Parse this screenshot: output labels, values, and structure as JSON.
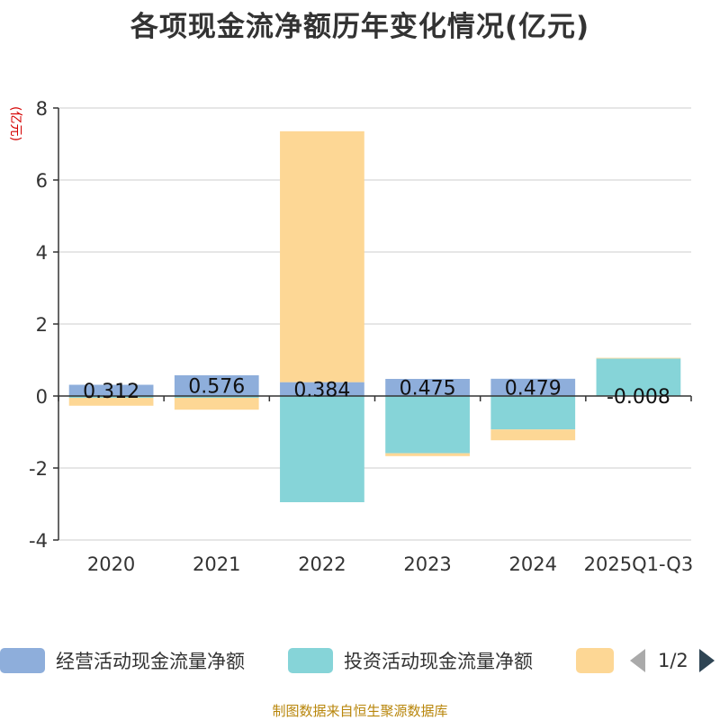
{
  "chart_data": {
    "type": "bar",
    "title": "各项现金流净额历年变化情况(亿元)",
    "unit_label": "(亿元)",
    "categories": [
      "2020",
      "2021",
      "2022",
      "2023",
      "2024",
      "2025Q1-Q3"
    ],
    "stacked": true,
    "ylim": [
      -4,
      8
    ],
    "yticks": [
      -4,
      -2,
      0,
      2,
      4,
      6,
      8
    ],
    "grid": true,
    "series": [
      {
        "name": "经营活动现金流量净额",
        "color": "#8eaedb",
        "values": [
          0.312,
          0.576,
          0.384,
          0.475,
          0.479,
          -0.008
        ],
        "labels": [
          "0.312",
          "0.576",
          "0.384",
          "0.475",
          "0.479",
          "-0.008"
        ]
      },
      {
        "name": "投资活动现金流量净额",
        "color": "#86d4d8",
        "values": [
          -0.05,
          -0.05,
          -2.95,
          -1.59,
          -0.93,
          1.04
        ]
      },
      {
        "name": "",
        "color": "#fdd795",
        "values": [
          -0.22,
          -0.33,
          6.97,
          -0.08,
          -0.3,
          0.02
        ]
      }
    ]
  },
  "legend": {
    "page_text": "1/2"
  },
  "source_note": "制图数据来自恒生聚源数据库"
}
